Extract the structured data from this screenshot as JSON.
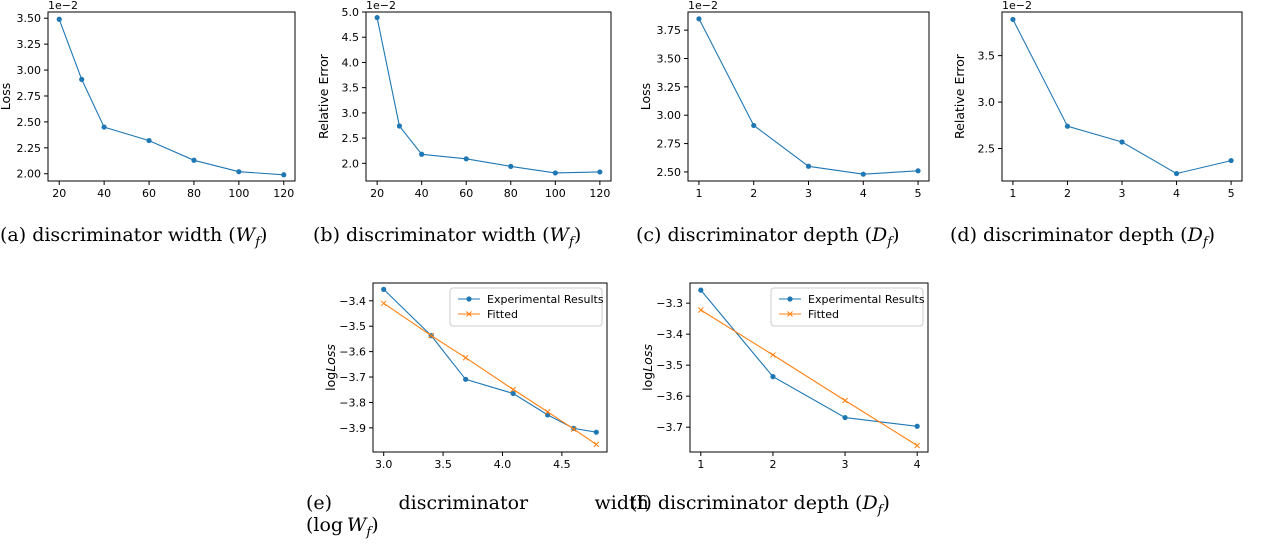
{
  "chart_data": [
    {
      "id": "a",
      "type": "line",
      "x": [
        20,
        30,
        40,
        60,
        80,
        100,
        120
      ],
      "series": [
        {
          "values": [
            3.49,
            2.91,
            2.45,
            2.32,
            2.13,
            2.02,
            1.99
          ],
          "color": "#1f77b4",
          "marker": "circle"
        }
      ],
      "ylabel": "Loss",
      "xlabel": "",
      "multiplier": "1e−2",
      "xlim": [
        15,
        125
      ],
      "ylim": [
        1.93,
        3.56
      ],
      "xticks": [
        20,
        40,
        60,
        80,
        100,
        120
      ],
      "xtick_labels": [
        "20",
        "40",
        "60",
        "80",
        "100",
        "120"
      ],
      "yticks": [
        2.0,
        2.25,
        2.5,
        2.75,
        3.0,
        3.25,
        3.5
      ],
      "ytick_labels": [
        "2.00",
        "2.25",
        "2.50",
        "2.75",
        "3.00",
        "3.25",
        "3.50"
      ],
      "caption": {
        "prefix": "(a) discriminator width (",
        "var": "W",
        "sub": "f",
        "suffix": ")"
      }
    },
    {
      "id": "b",
      "type": "line",
      "x": [
        20,
        30,
        40,
        60,
        80,
        100,
        120
      ],
      "series": [
        {
          "values": [
            4.89,
            2.74,
            2.18,
            2.09,
            1.94,
            1.81,
            1.83
          ],
          "color": "#1f77b4",
          "marker": "circle"
        }
      ],
      "ylabel": "Relative Error",
      "xlabel": "",
      "multiplier": "1e−2",
      "xlim": [
        15,
        125
      ],
      "ylim": [
        1.65,
        5.0
      ],
      "xticks": [
        20,
        40,
        60,
        80,
        100,
        120
      ],
      "xtick_labels": [
        "20",
        "40",
        "60",
        "80",
        "100",
        "120"
      ],
      "yticks": [
        2.0,
        2.5,
        3.0,
        3.5,
        4.0,
        4.5,
        5.0
      ],
      "ytick_labels": [
        "2.0",
        "2.5",
        "3.0",
        "3.5",
        "4.0",
        "4.5",
        "5.0"
      ],
      "caption": {
        "prefix": "(b) discriminator width (",
        "var": "W",
        "sub": "f",
        "suffix": ")"
      }
    },
    {
      "id": "c",
      "type": "line",
      "x": [
        1,
        2,
        3,
        4,
        5
      ],
      "series": [
        {
          "values": [
            3.85,
            2.91,
            2.55,
            2.48,
            2.51
          ],
          "color": "#1f77b4",
          "marker": "circle"
        }
      ],
      "ylabel": "Loss",
      "xlabel": "",
      "multiplier": "1e−2",
      "xlim": [
        0.8,
        5.2
      ],
      "ylim": [
        2.42,
        3.91
      ],
      "xticks": [
        1,
        2,
        3,
        4,
        5
      ],
      "xtick_labels": [
        "1",
        "2",
        "3",
        "4",
        "5"
      ],
      "yticks": [
        2.5,
        2.75,
        3.0,
        3.25,
        3.5,
        3.75
      ],
      "ytick_labels": [
        "2.50",
        "2.75",
        "3.00",
        "3.25",
        "3.50",
        "3.75"
      ],
      "caption": {
        "prefix": "(c) discriminator depth (",
        "var": "D",
        "sub": "f",
        "suffix": ")"
      }
    },
    {
      "id": "d",
      "type": "line",
      "x": [
        1,
        2,
        3,
        4,
        5
      ],
      "series": [
        {
          "values": [
            3.89,
            2.74,
            2.57,
            2.23,
            2.37
          ],
          "color": "#1f77b4",
          "marker": "circle"
        }
      ],
      "ylabel": "Relative Error",
      "xlabel": "",
      "multiplier": "1e−2",
      "xlim": [
        0.8,
        5.2
      ],
      "ylim": [
        2.15,
        3.97
      ],
      "xticks": [
        1,
        2,
        3,
        4,
        5
      ],
      "xtick_labels": [
        "1",
        "2",
        "3",
        "4",
        "5"
      ],
      "yticks": [
        2.5,
        3.0,
        3.5
      ],
      "ytick_labels": [
        "2.5",
        "3.0",
        "3.5"
      ],
      "caption": {
        "prefix": "(d) discriminator depth (",
        "var": "D",
        "sub": "f",
        "suffix": ")"
      }
    },
    {
      "id": "e",
      "type": "line",
      "x": [
        3.0,
        3.4,
        3.69,
        4.09,
        4.38,
        4.6,
        4.79
      ],
      "series": [
        {
          "name": "Experimental Results",
          "values": [
            -3.355,
            -3.537,
            -3.709,
            -3.765,
            -3.849,
            -3.902,
            -3.917
          ],
          "color": "#1f77b4",
          "marker": "circle"
        },
        {
          "name": "Fitted",
          "values": [
            -3.41,
            -3.537,
            -3.624,
            -3.749,
            -3.837,
            -3.905,
            -3.965
          ],
          "color": "#ff7f0e",
          "marker": "x"
        }
      ],
      "ylabel": "logLoss",
      "xlabel": "",
      "legend": "top-right",
      "xlim": [
        2.91,
        4.88
      ],
      "ylim": [
        -3.995,
        -3.33
      ],
      "xticks": [
        3.0,
        3.5,
        4.0,
        4.5
      ],
      "xtick_labels": [
        "3.0",
        "3.5",
        "4.0",
        "4.5"
      ],
      "yticks": [
        -3.9,
        -3.8,
        -3.7,
        -3.6,
        -3.5,
        -3.4
      ],
      "ytick_labels": [
        "−3.9",
        "−3.8",
        "−3.7",
        "−3.6",
        "−3.5",
        "−3.4"
      ],
      "caption": {
        "prefix": "(e)           discriminator           width",
        "line2_prefix": "(log ",
        "var": "W",
        "sub": "f",
        "suffix": ")"
      }
    },
    {
      "id": "f",
      "type": "line",
      "x": [
        1,
        2,
        3,
        4
      ],
      "series": [
        {
          "name": "Experimental Results",
          "values": [
            -3.258,
            -3.537,
            -3.669,
            -3.697
          ],
          "color": "#1f77b4",
          "marker": "circle"
        },
        {
          "name": "Fitted",
          "values": [
            -3.322,
            -3.467,
            -3.614,
            -3.759
          ],
          "color": "#ff7f0e",
          "marker": "x"
        }
      ],
      "ylabel": "logLoss",
      "xlabel": "",
      "legend": "top-right",
      "xlim": [
        0.85,
        4.15
      ],
      "ylim": [
        -3.78,
        -3.235
      ],
      "xticks": [
        1,
        2,
        3,
        4
      ],
      "xtick_labels": [
        "1",
        "2",
        "3",
        "4"
      ],
      "yticks": [
        -3.7,
        -3.6,
        -3.5,
        -3.4,
        -3.3
      ],
      "ytick_labels": [
        "−3.7",
        "−3.6",
        "−3.5",
        "−3.4",
        "−3.3"
      ],
      "caption": {
        "prefix": "(f) discriminator depth (",
        "var": "D",
        "sub": "f",
        "suffix": ")"
      }
    }
  ]
}
